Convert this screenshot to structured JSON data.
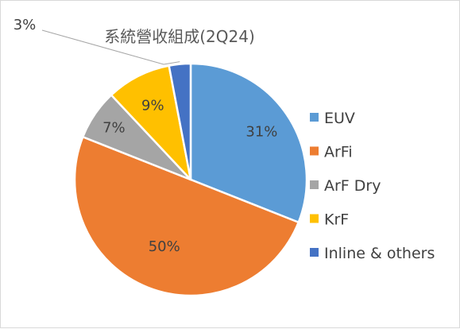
{
  "chart_data": {
    "type": "pie",
    "title": "系統營收組成(2Q24)",
    "categories": [
      "EUV",
      "ArFi",
      "ArF Dry",
      "KrF",
      "Inline & others"
    ],
    "values": [
      31,
      50,
      7,
      9,
      3
    ],
    "labels": [
      "31%",
      "50%",
      "7%",
      "9%",
      "3%"
    ],
    "colors": [
      "#5b9bd5",
      "#ed7d31",
      "#a5a5a5",
      "#ffc000",
      "#4472c4"
    ],
    "legend_position": "right",
    "start_angle": "top, clockwise"
  }
}
